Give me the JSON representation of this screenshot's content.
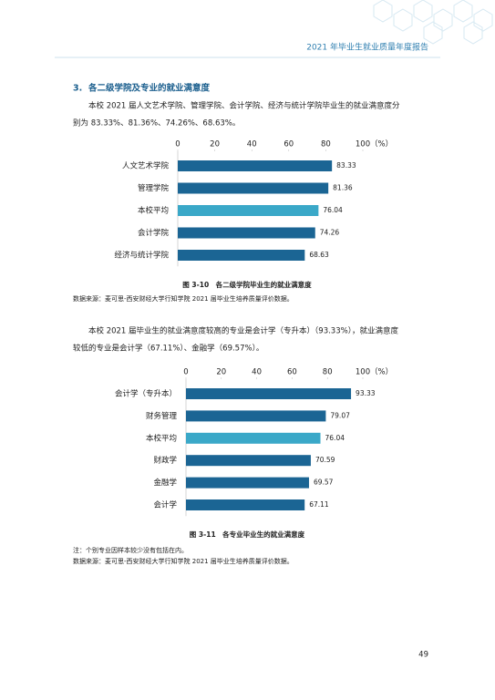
{
  "header": {
    "title": "2021 年毕业生就业质量年度报告"
  },
  "section": {
    "number": "3.",
    "title": "各二级学院及专业的就业满意度"
  },
  "paragraphs": [
    [
      "本校 2021 届人文艺术学院、管理学院、会计学院、经济与统计学院毕业生的就业满意度分",
      "别为 83.33%、81.36%、74.26%、68.63%。"
    ],
    [
      "本校 2021 届毕业生的就业满意度较高的专业是会计学（专升本）（93.33%），就业满意度",
      "较低的专业是会计学（67.11%）、金融学（69.57%）。"
    ]
  ],
  "chart_data": [
    {
      "type": "hbar",
      "title": "图 3-10　各二级学院毕业生的就业满意度",
      "x_unit": "（%）",
      "categories": [
        "人文艺术学院",
        "管理学院",
        "本校平均",
        "会计学院",
        "经济与统计学院"
      ],
      "values": [
        83.33,
        81.36,
        76.04,
        74.26,
        68.63
      ],
      "colors": [
        "#1b6594",
        "#1b6594",
        "#3aa8c8",
        "#1b6594",
        "#1b6594"
      ],
      "xlim": [
        0,
        100
      ],
      "xticks": [
        0,
        20,
        40,
        60,
        80,
        100
      ],
      "source": "数据来源：麦可思-西安财经大学行知学院 2021 届毕业生培养质量评价数据。"
    },
    {
      "type": "hbar",
      "title": "图 3-11　各专业毕业生的就业满意度",
      "x_unit": "（%）",
      "categories": [
        "会计学（专升本）",
        "财务管理",
        "本校平均",
        "财政学",
        "金融学",
        "会计学"
      ],
      "values": [
        93.33,
        79.07,
        76.04,
        70.59,
        69.57,
        67.11
      ],
      "colors": [
        "#1b6594",
        "#1b6594",
        "#3aa8c8",
        "#1b6594",
        "#1b6594",
        "#1b6594"
      ],
      "xlim": [
        0,
        100
      ],
      "xticks": [
        0,
        20,
        40,
        60,
        80,
        100
      ],
      "notes": [
        "注：个别专业因样本较少没有包括在内。",
        "数据来源：麦可思-西安财经大学行知学院 2021 届毕业生培养质量评价数据。"
      ]
    }
  ],
  "page_number": "49"
}
